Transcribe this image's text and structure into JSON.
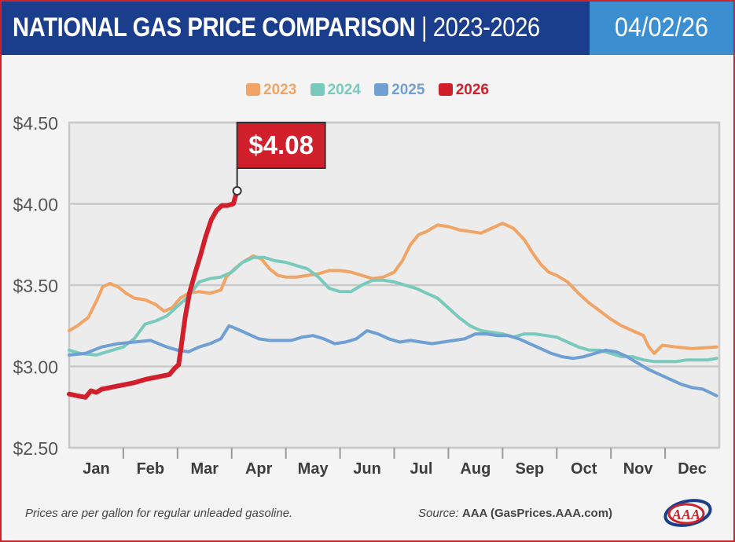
{
  "header": {
    "title_bold": "NATIONAL GAS PRICE COMPARISON",
    "title_rest": " | 2023-2026",
    "date": "04/02/26"
  },
  "colors": {
    "frame": "#c8262c",
    "title_bg": "#1b3e8c",
    "date_bg": "#3b8fd0",
    "y2023": "#f0a465",
    "y2024": "#79cabd",
    "y2025": "#6f9fd3",
    "y2026": "#d1202c"
  },
  "callout": {
    "text": "$4.08"
  },
  "footnote": "Prices are per gallon for regular unleaded gasoline.",
  "source": {
    "label": "Source:",
    "value": "AAA (GasPrices.AAA.com)"
  },
  "logo": {
    "text": "AAA",
    "icon": "aaa-logo-icon"
  },
  "chart_data": {
    "type": "line",
    "title": "NATIONAL GAS PRICE COMPARISON | 2023-2026",
    "x_unit": "month (1 = start of Jan, 13 = end of Dec)",
    "xlim": [
      1,
      13
    ],
    "ylim": [
      2.5,
      4.5
    ],
    "yticks": [
      2.5,
      3.0,
      3.5,
      4.0,
      4.5
    ],
    "ytick_labels": [
      "$2.50",
      "$3.00",
      "$3.50",
      "$4.00",
      "$4.50"
    ],
    "categories": [
      "Jan",
      "Feb",
      "Mar",
      "Apr",
      "May",
      "Jun",
      "Jul",
      "Aug",
      "Sep",
      "Oct",
      "Nov",
      "Dec"
    ],
    "grid": true,
    "legend_position": "top-center",
    "series": [
      {
        "name": "2023",
        "color": "#f0a465",
        "points": [
          [
            1.0,
            3.22
          ],
          [
            1.15,
            3.25
          ],
          [
            1.35,
            3.3
          ],
          [
            1.5,
            3.4
          ],
          [
            1.62,
            3.49
          ],
          [
            1.75,
            3.51
          ],
          [
            1.9,
            3.49
          ],
          [
            2.05,
            3.45
          ],
          [
            2.2,
            3.42
          ],
          [
            2.4,
            3.41
          ],
          [
            2.6,
            3.38
          ],
          [
            2.75,
            3.34
          ],
          [
            2.9,
            3.36
          ],
          [
            3.05,
            3.42
          ],
          [
            3.2,
            3.45
          ],
          [
            3.4,
            3.46
          ],
          [
            3.6,
            3.45
          ],
          [
            3.8,
            3.47
          ],
          [
            3.9,
            3.55
          ],
          [
            4.05,
            3.6
          ],
          [
            4.2,
            3.64
          ],
          [
            4.4,
            3.68
          ],
          [
            4.55,
            3.66
          ],
          [
            4.7,
            3.6
          ],
          [
            4.85,
            3.56
          ],
          [
            5.0,
            3.55
          ],
          [
            5.2,
            3.55
          ],
          [
            5.4,
            3.56
          ],
          [
            5.6,
            3.57
          ],
          [
            5.8,
            3.59
          ],
          [
            6.0,
            3.59
          ],
          [
            6.2,
            3.58
          ],
          [
            6.4,
            3.56
          ],
          [
            6.6,
            3.54
          ],
          [
            6.8,
            3.55
          ],
          [
            7.0,
            3.58
          ],
          [
            7.15,
            3.65
          ],
          [
            7.3,
            3.75
          ],
          [
            7.45,
            3.81
          ],
          [
            7.6,
            3.83
          ],
          [
            7.8,
            3.87
          ],
          [
            8.0,
            3.86
          ],
          [
            8.2,
            3.84
          ],
          [
            8.4,
            3.83
          ],
          [
            8.6,
            3.82
          ],
          [
            8.8,
            3.85
          ],
          [
            9.0,
            3.88
          ],
          [
            9.2,
            3.85
          ],
          [
            9.4,
            3.78
          ],
          [
            9.55,
            3.7
          ],
          [
            9.7,
            3.63
          ],
          [
            9.85,
            3.58
          ],
          [
            10.0,
            3.56
          ],
          [
            10.2,
            3.52
          ],
          [
            10.4,
            3.45
          ],
          [
            10.6,
            3.39
          ],
          [
            10.8,
            3.34
          ],
          [
            11.0,
            3.29
          ],
          [
            11.2,
            3.25
          ],
          [
            11.4,
            3.22
          ],
          [
            11.6,
            3.19
          ],
          [
            11.7,
            3.12
          ],
          [
            11.8,
            3.08
          ],
          [
            11.95,
            3.13
          ],
          [
            12.2,
            3.12
          ],
          [
            12.5,
            3.11
          ],
          [
            12.95,
            3.12
          ]
        ]
      },
      {
        "name": "2024",
        "color": "#79cabd",
        "points": [
          [
            1.0,
            3.1
          ],
          [
            1.2,
            3.08
          ],
          [
            1.5,
            3.07
          ],
          [
            1.8,
            3.1
          ],
          [
            2.0,
            3.12
          ],
          [
            2.2,
            3.17
          ],
          [
            2.4,
            3.26
          ],
          [
            2.6,
            3.28
          ],
          [
            2.8,
            3.31
          ],
          [
            3.0,
            3.37
          ],
          [
            3.2,
            3.43
          ],
          [
            3.4,
            3.52
          ],
          [
            3.6,
            3.54
          ],
          [
            3.8,
            3.55
          ],
          [
            4.0,
            3.58
          ],
          [
            4.2,
            3.64
          ],
          [
            4.4,
            3.67
          ],
          [
            4.6,
            3.67
          ],
          [
            4.8,
            3.65
          ],
          [
            5.0,
            3.64
          ],
          [
            5.2,
            3.62
          ],
          [
            5.4,
            3.6
          ],
          [
            5.6,
            3.55
          ],
          [
            5.8,
            3.48
          ],
          [
            6.0,
            3.46
          ],
          [
            6.2,
            3.46
          ],
          [
            6.4,
            3.5
          ],
          [
            6.6,
            3.53
          ],
          [
            6.8,
            3.53
          ],
          [
            7.0,
            3.52
          ],
          [
            7.2,
            3.5
          ],
          [
            7.4,
            3.48
          ],
          [
            7.6,
            3.45
          ],
          [
            7.8,
            3.42
          ],
          [
            8.0,
            3.36
          ],
          [
            8.2,
            3.3
          ],
          [
            8.4,
            3.25
          ],
          [
            8.6,
            3.22
          ],
          [
            8.8,
            3.21
          ],
          [
            9.0,
            3.2
          ],
          [
            9.2,
            3.18
          ],
          [
            9.4,
            3.2
          ],
          [
            9.6,
            3.2
          ],
          [
            9.8,
            3.19
          ],
          [
            10.0,
            3.18
          ],
          [
            10.2,
            3.15
          ],
          [
            10.4,
            3.12
          ],
          [
            10.6,
            3.1
          ],
          [
            10.8,
            3.1
          ],
          [
            11.0,
            3.08
          ],
          [
            11.2,
            3.06
          ],
          [
            11.4,
            3.06
          ],
          [
            11.6,
            3.04
          ],
          [
            11.8,
            3.03
          ],
          [
            12.0,
            3.03
          ],
          [
            12.2,
            3.03
          ],
          [
            12.4,
            3.04
          ],
          [
            12.6,
            3.04
          ],
          [
            12.8,
            3.04
          ],
          [
            12.95,
            3.05
          ]
        ]
      },
      {
        "name": "2025",
        "color": "#6f9fd3",
        "points": [
          [
            1.0,
            3.07
          ],
          [
            1.3,
            3.08
          ],
          [
            1.6,
            3.12
          ],
          [
            1.9,
            3.14
          ],
          [
            2.2,
            3.15
          ],
          [
            2.5,
            3.16
          ],
          [
            2.8,
            3.12
          ],
          [
            3.0,
            3.1
          ],
          [
            3.2,
            3.09
          ],
          [
            3.4,
            3.12
          ],
          [
            3.6,
            3.14
          ],
          [
            3.8,
            3.17
          ],
          [
            3.95,
            3.25
          ],
          [
            4.1,
            3.23
          ],
          [
            4.3,
            3.2
          ],
          [
            4.5,
            3.17
          ],
          [
            4.7,
            3.16
          ],
          [
            4.9,
            3.16
          ],
          [
            5.1,
            3.16
          ],
          [
            5.3,
            3.18
          ],
          [
            5.5,
            3.19
          ],
          [
            5.7,
            3.17
          ],
          [
            5.9,
            3.14
          ],
          [
            6.1,
            3.15
          ],
          [
            6.3,
            3.17
          ],
          [
            6.5,
            3.22
          ],
          [
            6.7,
            3.2
          ],
          [
            6.9,
            3.17
          ],
          [
            7.1,
            3.15
          ],
          [
            7.3,
            3.16
          ],
          [
            7.5,
            3.15
          ],
          [
            7.7,
            3.14
          ],
          [
            7.9,
            3.15
          ],
          [
            8.1,
            3.16
          ],
          [
            8.3,
            3.17
          ],
          [
            8.5,
            3.2
          ],
          [
            8.7,
            3.2
          ],
          [
            8.9,
            3.19
          ],
          [
            9.1,
            3.19
          ],
          [
            9.3,
            3.17
          ],
          [
            9.5,
            3.14
          ],
          [
            9.7,
            3.11
          ],
          [
            9.9,
            3.08
          ],
          [
            10.1,
            3.06
          ],
          [
            10.3,
            3.05
          ],
          [
            10.5,
            3.06
          ],
          [
            10.7,
            3.08
          ],
          [
            10.9,
            3.1
          ],
          [
            11.1,
            3.09
          ],
          [
            11.3,
            3.06
          ],
          [
            11.5,
            3.02
          ],
          [
            11.7,
            2.98
          ],
          [
            11.9,
            2.95
          ],
          [
            12.1,
            2.92
          ],
          [
            12.3,
            2.89
          ],
          [
            12.5,
            2.87
          ],
          [
            12.7,
            2.86
          ],
          [
            12.95,
            2.82
          ]
        ]
      },
      {
        "name": "2026",
        "color": "#d1202c",
        "points": [
          [
            1.0,
            2.83
          ],
          [
            1.15,
            2.82
          ],
          [
            1.3,
            2.81
          ],
          [
            1.4,
            2.85
          ],
          [
            1.5,
            2.84
          ],
          [
            1.6,
            2.86
          ],
          [
            1.75,
            2.87
          ],
          [
            1.9,
            2.88
          ],
          [
            2.05,
            2.89
          ],
          [
            2.2,
            2.9
          ],
          [
            2.4,
            2.92
          ],
          [
            2.55,
            2.93
          ],
          [
            2.7,
            2.94
          ],
          [
            2.85,
            2.95
          ],
          [
            2.95,
            2.99
          ],
          [
            3.02,
            3.01
          ],
          [
            3.08,
            3.15
          ],
          [
            3.14,
            3.3
          ],
          [
            3.22,
            3.45
          ],
          [
            3.32,
            3.57
          ],
          [
            3.42,
            3.68
          ],
          [
            3.52,
            3.8
          ],
          [
            3.62,
            3.9
          ],
          [
            3.72,
            3.96
          ],
          [
            3.82,
            3.99
          ],
          [
            3.92,
            3.99
          ],
          [
            4.03,
            4.0
          ],
          [
            4.1,
            4.08
          ]
        ]
      }
    ],
    "annotation": {
      "label": "$4.08",
      "series": "2026",
      "x": 4.1,
      "y": 4.08
    }
  }
}
